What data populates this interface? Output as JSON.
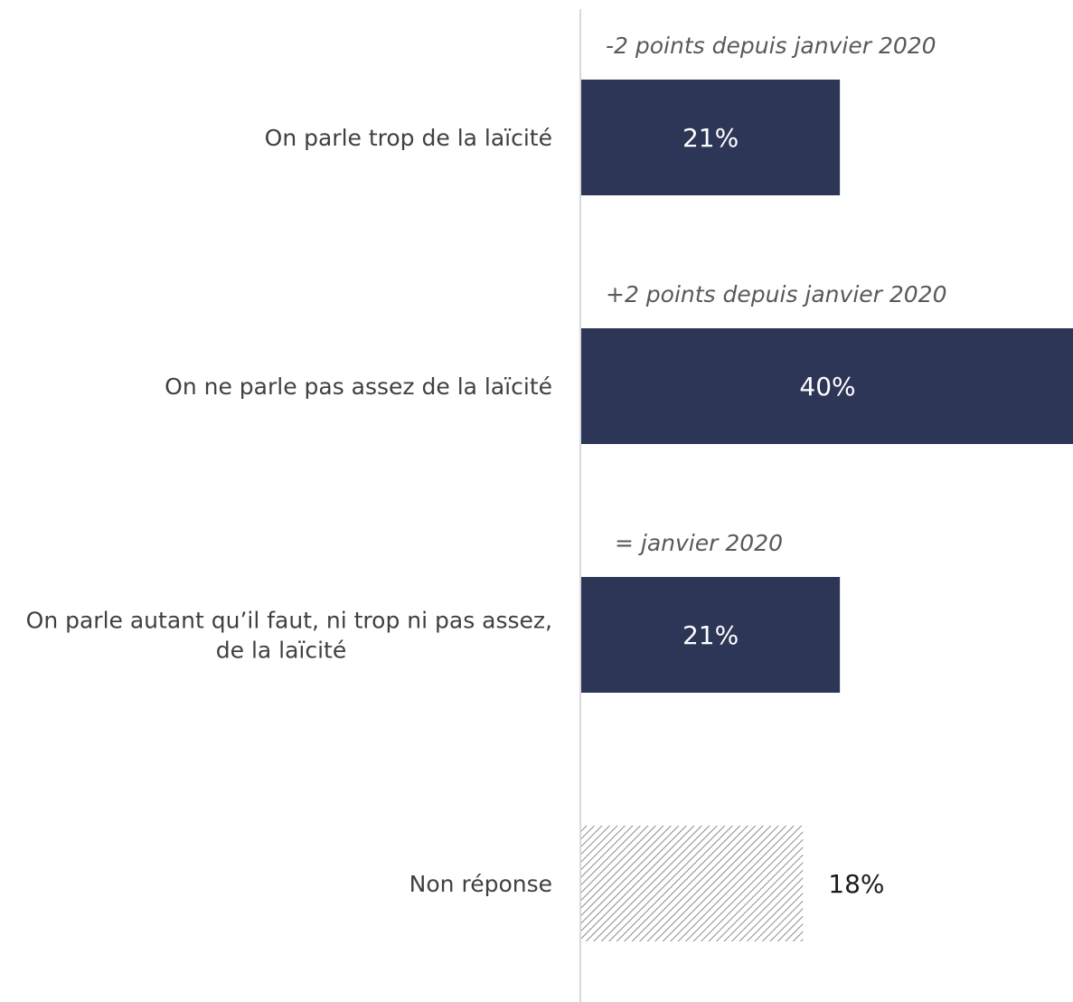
{
  "chart_data": {
    "type": "bar",
    "orientation": "horizontal",
    "categories": [
      [
        "On parle trop de la laïcité"
      ],
      [
        "On ne parle pas assez de la laïcité"
      ],
      [
        "On parle autant qu’il faut, ni trop ni pas assez,",
        "de la laïcité"
      ],
      [
        "Non réponse"
      ]
    ],
    "values": [
      21,
      40,
      21,
      18
    ],
    "value_labels": [
      "21%",
      "40%",
      "21%",
      "18%"
    ],
    "annotations": [
      "-2 points depuis janvier 2020",
      "+2 points depuis janvier 2020",
      "= janvier 2020",
      ""
    ],
    "bar_styles": [
      "solid",
      "solid",
      "solid",
      "hatched"
    ],
    "colors": {
      "bar": "#2e3657",
      "hatch": "#8c8c8c",
      "axis": "#d9d9d9"
    },
    "xlim": [
      0,
      40
    ],
    "grid": false,
    "legend": "none",
    "title": "",
    "xlabel": "",
    "ylabel": ""
  }
}
